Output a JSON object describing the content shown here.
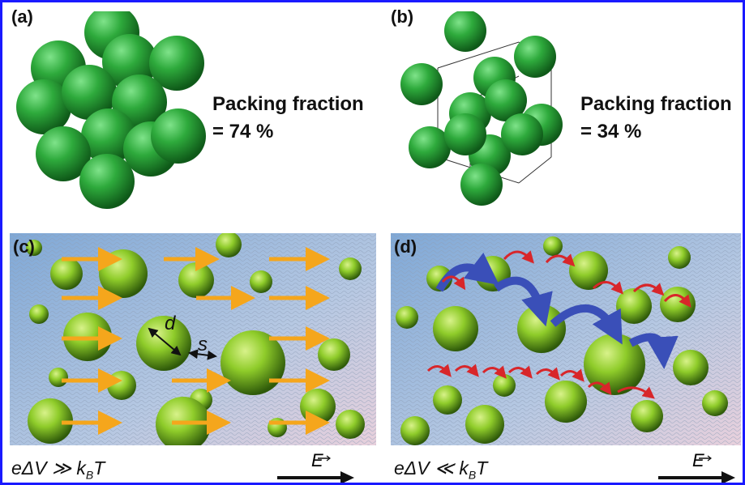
{
  "panels": {
    "a": {
      "label": "(a)",
      "packing_title": "Packing fraction",
      "packing_value": "= 74 %"
    },
    "b": {
      "label": "(b)",
      "packing_title": "Packing fraction",
      "packing_value": "= 34 %"
    },
    "c": {
      "label": "(c)",
      "diameter_label": "d",
      "spacing_label": "s",
      "caption_left": "eΔV ≫ k",
      "caption_sub": "B",
      "caption_right": "T",
      "field_label": "E"
    },
    "d": {
      "label": "(d)",
      "caption_left": "eΔV ≪ k",
      "caption_sub": "B",
      "caption_right": "T",
      "field_label": "E"
    }
  },
  "colors": {
    "border": "#1a1aff",
    "sphere": "#2eaa3c",
    "nanoparticle": "#8fcc2a",
    "orange_arrow": "#f5a61c",
    "blue_arrow": "#3a4fb8",
    "red_arrow": "#d8262a"
  }
}
